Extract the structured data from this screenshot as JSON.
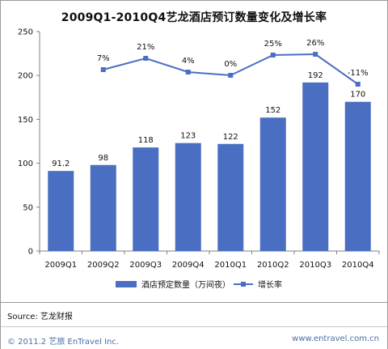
{
  "chart_data": {
    "type": "bar",
    "title": "2009Q1-2010Q4艺龙酒店预订数量变化及增长率",
    "categories": [
      "2009Q1",
      "2009Q2",
      "2009Q3",
      "2009Q4",
      "2010Q1",
      "2010Q2",
      "2010Q3",
      "2010Q4"
    ],
    "series": [
      {
        "name": "酒店预定数量（万间夜）",
        "type": "bar",
        "values": [
          91.2,
          98,
          118,
          123,
          122,
          152,
          192,
          170
        ],
        "labels": [
          "91.2",
          "98",
          "118",
          "123",
          "122",
          "152",
          "192",
          "170"
        ],
        "color": "#4a6fc2"
      },
      {
        "name": "增长率",
        "type": "line",
        "values": [
          null,
          7,
          21,
          4,
          0,
          25,
          26,
          -11
        ],
        "labels": [
          "",
          "7%",
          "21%",
          "4%",
          "0%",
          "25%",
          "26%",
          "-11%"
        ],
        "color": "#4a6fc2"
      }
    ],
    "ylim": [
      0,
      250
    ],
    "yticks": [
      "0",
      "50",
      "100",
      "150",
      "200",
      "250"
    ],
    "legend_position": "bottom",
    "grid": false
  },
  "source": "Source: 艺龙财报",
  "footer": {
    "copyright": "© 2011.2 艺旅 EnTravel Inc.",
    "website": "www.entravel.com.cn"
  }
}
